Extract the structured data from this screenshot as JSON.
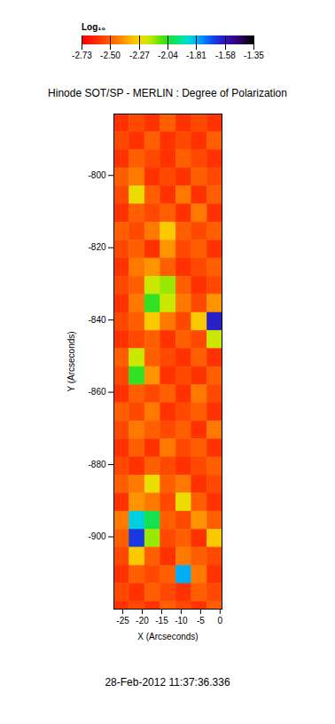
{
  "chart_data": {
    "type": "heatmap",
    "title": "Hinode SOT/SP - MERLIN : Degree of Polarization",
    "x_label": "X (Arcseconds)",
    "y_label": "Y (Arcseconds)",
    "xlim": [
      -27.3,
      0.5
    ],
    "ylim": [
      -920,
      -783
    ],
    "xticks": [
      -25,
      -20,
      -15,
      -10,
      -5,
      0
    ],
    "yticks": [
      -800,
      -820,
      -840,
      -860,
      -880,
      -900
    ],
    "x_edges": [
      -27.3,
      -23.3,
      -19.3,
      -15.3,
      -11.3,
      -7.3,
      -3.3,
      0.5
    ],
    "y_edges": [
      -783,
      -788,
      -793,
      -798,
      -803,
      -808,
      -813,
      -818,
      -823,
      -828,
      -833,
      -838,
      -843,
      -848,
      -853,
      -858,
      -863,
      -868,
      -873,
      -878,
      -883,
      -888,
      -893,
      -898,
      -903,
      -908,
      -913,
      -918,
      -920
    ],
    "cells": [
      [
        -2.6,
        -2.55,
        -2.6,
        -2.5,
        -2.6,
        -2.55,
        -2.6
      ],
      [
        -2.55,
        -2.6,
        -2.5,
        -2.6,
        -2.55,
        -2.6,
        -2.5
      ],
      [
        -2.6,
        -2.5,
        -2.55,
        -2.6,
        -2.5,
        -2.55,
        -2.6
      ],
      [
        -2.5,
        -2.45,
        -2.6,
        -2.55,
        -2.6,
        -2.5,
        -2.55
      ],
      [
        -2.55,
        -2.25,
        -2.5,
        -2.6,
        -2.45,
        -2.6,
        -2.5
      ],
      [
        -2.6,
        -2.5,
        -2.55,
        -2.5,
        -2.6,
        -2.45,
        -2.6
      ],
      [
        -2.5,
        -2.55,
        -2.45,
        -2.3,
        -2.5,
        -2.55,
        -2.5
      ],
      [
        -2.55,
        -2.5,
        -2.6,
        -2.4,
        -2.55,
        -2.5,
        -2.6
      ],
      [
        -2.6,
        -2.45,
        -2.4,
        -2.5,
        -2.6,
        -2.55,
        -2.5
      ],
      [
        -2.55,
        -2.5,
        -2.2,
        -2.15,
        -2.5,
        -2.6,
        -2.55
      ],
      [
        -2.6,
        -2.45,
        -2.05,
        -2.2,
        -2.45,
        -2.55,
        -2.4
      ],
      [
        -2.55,
        -2.5,
        -2.3,
        -2.45,
        -2.55,
        -2.3,
        -1.6
      ],
      [
        -2.6,
        -2.55,
        -2.5,
        -2.6,
        -2.5,
        -2.55,
        -2.2
      ],
      [
        -2.5,
        -2.2,
        -2.5,
        -2.55,
        -2.6,
        -2.5,
        -2.6
      ],
      [
        -2.55,
        -2.05,
        -2.4,
        -2.6,
        -2.55,
        -2.6,
        -2.5
      ],
      [
        -2.6,
        -2.5,
        -2.55,
        -2.5,
        -2.6,
        -2.45,
        -2.55
      ],
      [
        -2.5,
        -2.55,
        -2.45,
        -2.6,
        -2.55,
        -2.5,
        -2.6
      ],
      [
        -2.55,
        -2.45,
        -2.5,
        -2.55,
        -2.5,
        -2.6,
        -2.45
      ],
      [
        -2.6,
        -2.5,
        -2.6,
        -2.45,
        -2.55,
        -2.5,
        -2.6
      ],
      [
        -2.55,
        -2.6,
        -2.5,
        -2.55,
        -2.6,
        -2.55,
        -2.5
      ],
      [
        -2.5,
        -2.45,
        -2.25,
        -2.5,
        -2.45,
        -2.6,
        -2.55
      ],
      [
        -2.6,
        -2.4,
        -2.45,
        -2.55,
        -2.25,
        -2.5,
        -2.6
      ],
      [
        -2.45,
        -1.85,
        -2.0,
        -2.5,
        -2.55,
        -2.4,
        -2.5
      ],
      [
        -2.5,
        -1.65,
        -2.15,
        -2.55,
        -2.5,
        -2.6,
        -2.3
      ],
      [
        -2.55,
        -2.3,
        -2.5,
        -2.6,
        -2.45,
        -2.5,
        -2.55
      ],
      [
        -2.6,
        -2.5,
        -2.55,
        -2.5,
        -1.8,
        -2.45,
        -2.6
      ],
      [
        -2.55,
        -2.6,
        -2.5,
        -2.55,
        -2.6,
        -2.5,
        -2.55
      ],
      [
        -2.6,
        -2.55,
        -2.6,
        -2.5,
        -2.55,
        -2.6,
        -2.5
      ]
    ],
    "colorbar": {
      "label": "Log₁₀",
      "range": [
        -2.73,
        -1.35
      ],
      "ticks": [
        -2.73,
        {
          "value": -2.5,
          "label": "-2.50"
        },
        -2.27,
        -2.04,
        -1.81,
        -1.58,
        -1.35
      ]
    },
    "caption": "28-Feb-2012 11:37:36.336"
  }
}
